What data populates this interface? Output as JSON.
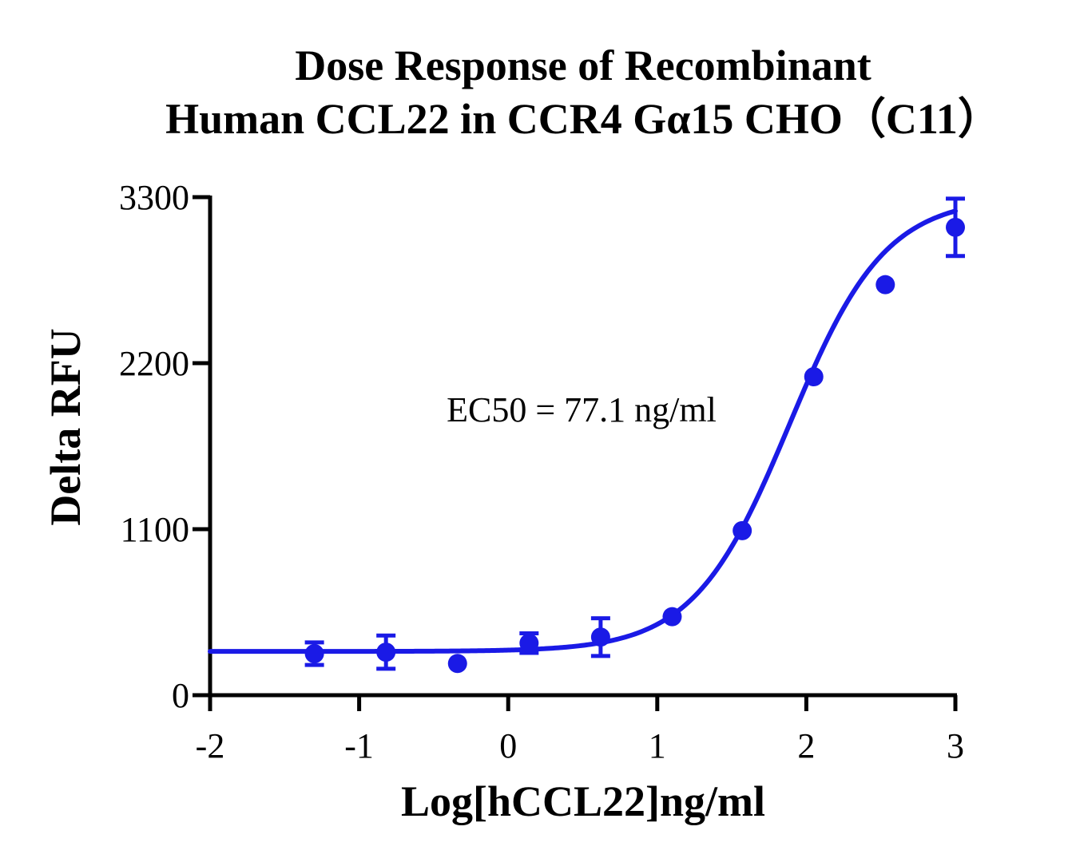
{
  "chart_data": {
    "type": "scatter",
    "title_lines": [
      "Dose Response of Recombinant",
      "Human CCL22 in CCR4 Gα15 CHO（C11）"
    ],
    "xlabel": "Log[hCCL22]ng/ml",
    "ylabel": "Delta RFU",
    "xlim": [
      -2,
      3
    ],
    "ylim": [
      0,
      3300
    ],
    "xticks": [
      "-2",
      "-1",
      "0",
      "1",
      "2",
      "3"
    ],
    "yticks": [
      "0",
      "1100",
      "2200",
      "3300"
    ],
    "annotation": "EC50 = 77.1 ng/ml",
    "color": "#1a1ae6",
    "series": [
      {
        "x": [
          -1.3,
          -0.82,
          -0.34,
          0.14,
          0.62,
          1.1,
          1.57,
          2.05,
          2.53,
          3.0
        ],
        "y": [
          275,
          285,
          210,
          345,
          385,
          520,
          1090,
          2110,
          2720,
          3100
        ],
        "error": [
          75,
          110,
          0,
          65,
          125,
          0,
          0,
          0,
          0,
          190
        ]
      }
    ],
    "fit": {
      "bottom": 290,
      "top": 3300,
      "log_ec50": 1.887,
      "hill": 1.35
    }
  }
}
